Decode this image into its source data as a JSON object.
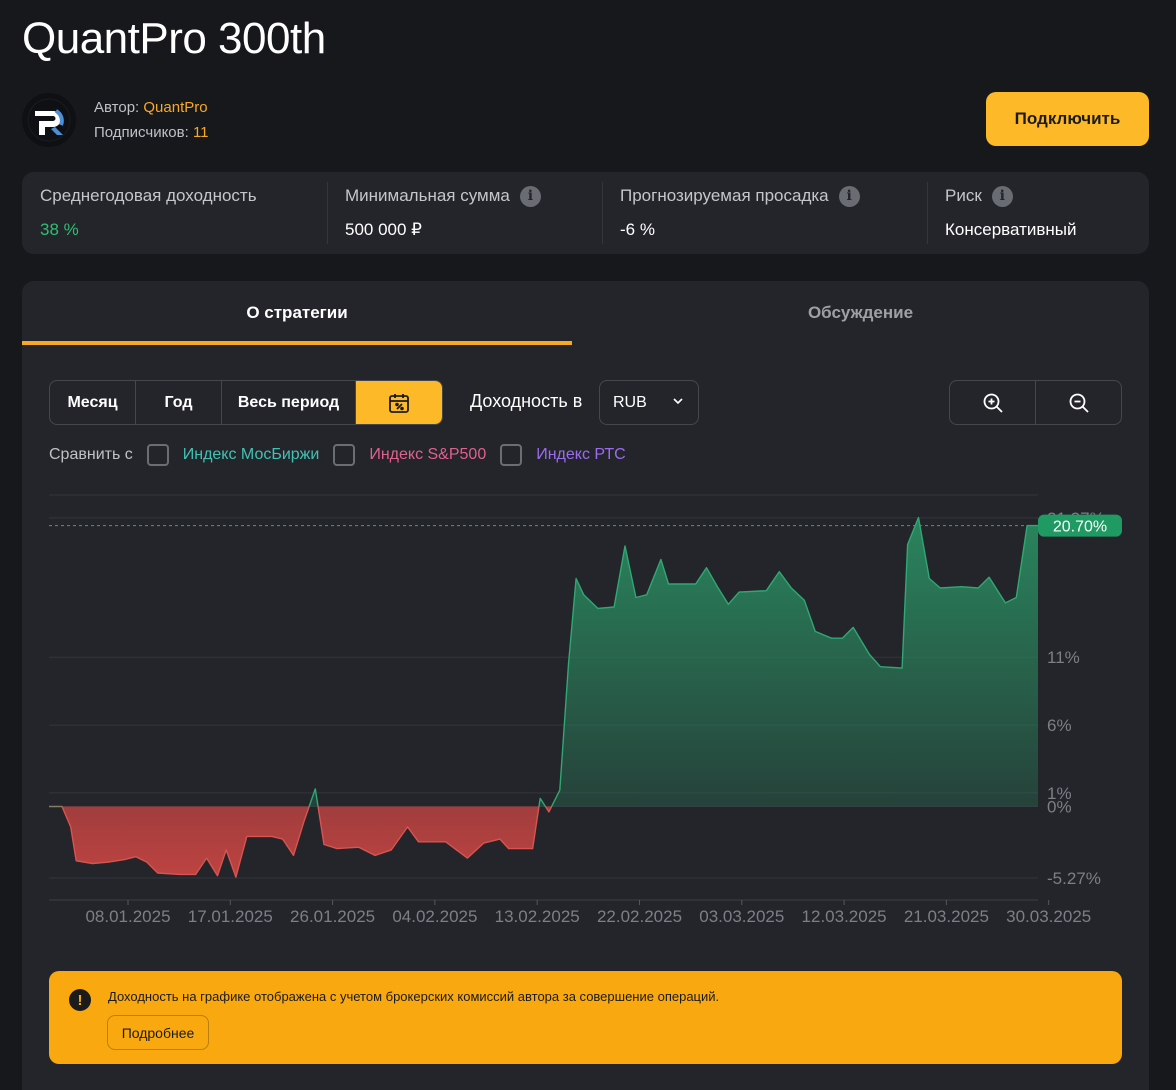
{
  "strategy": {
    "title": "QuantPro 300th",
    "author_label": "Автор: ",
    "author_name": "QuantPro",
    "subscribers_label": "Подписчиков: ",
    "subscribers_count": "11",
    "connect_label": "Подключить"
  },
  "stats": [
    {
      "label": "Среднегодовая доходность",
      "value": "38 %",
      "has_info": false
    },
    {
      "label": "Минимальная сумма",
      "value": "500 000 ₽",
      "has_info": true
    },
    {
      "label": "Прогнозируемая просадка",
      "value": "-6 %",
      "has_info": true
    },
    {
      "label": "Риск",
      "value": "Консервативный",
      "has_info": true
    }
  ],
  "tabs": [
    {
      "label": "О стратегии",
      "active": true
    },
    {
      "label": "Обсуждение",
      "active": false
    }
  ],
  "periods": {
    "month": "Месяц",
    "year": "Год",
    "all": "Весь период",
    "calendar_icon": "calendar-percent-icon"
  },
  "yield_in_label": "Доходность в",
  "currency": "RUB",
  "compare": {
    "label": "Сравнить с",
    "items": [
      {
        "label": "Индекс МосБиржи",
        "color": "#3fc2b4"
      },
      {
        "label": "Индекс S&P500",
        "color": "#e2608b"
      },
      {
        "label": "Индекс РТС",
        "color": "#9b6cf0"
      }
    ]
  },
  "chart_data": {
    "type": "area",
    "y_ticks": [
      {
        "value": 21.27,
        "label": "21.27%"
      },
      {
        "value": 11,
        "label": "11%"
      },
      {
        "value": 6,
        "label": "6%"
      },
      {
        "value": 1,
        "label": "1%"
      },
      {
        "value": 0,
        "label": "0%"
      },
      {
        "value": -5.27,
        "label": "-5.27%"
      }
    ],
    "x_labels": [
      "08.01.2025",
      "17.01.2025",
      "26.01.2025",
      "04.02.2025",
      "13.02.2025",
      "22.02.2025",
      "03.03.2025",
      "12.03.2025",
      "21.03.2025",
      "30.03.2025"
    ],
    "x_range": [
      "29.12.2024",
      "30.03.2025"
    ],
    "ylim": [
      -6.5,
      23
    ],
    "last_value": 20.7,
    "last_value_label": "20.70%",
    "positive_color": "#2fa873",
    "negative_color": "#d9534f",
    "values": [
      [
        0,
        0
      ],
      [
        1.2,
        0
      ],
      [
        2,
        -1.5
      ],
      [
        2.5,
        -4
      ],
      [
        4,
        -4.2
      ],
      [
        5.5,
        -4.1
      ],
      [
        7,
        -3.9
      ],
      [
        8,
        -3.7
      ],
      [
        9,
        -4.1
      ],
      [
        10,
        -4.9
      ],
      [
        12,
        -5.0
      ],
      [
        13.5,
        -5.0
      ],
      [
        14.5,
        -3.8
      ],
      [
        15.5,
        -5.1
      ],
      [
        16.3,
        -3.2
      ],
      [
        17.2,
        -5.2
      ],
      [
        18.2,
        -2.2
      ],
      [
        20.5,
        -2.2
      ],
      [
        21.5,
        -2.4
      ],
      [
        22.5,
        -3.6
      ],
      [
        23.5,
        -1.0
      ],
      [
        24.5,
        1.3
      ],
      [
        25.3,
        -2.8
      ],
      [
        26.5,
        -3.1
      ],
      [
        28.5,
        -3.0
      ],
      [
        30,
        -3.6
      ],
      [
        31.5,
        -3.2
      ],
      [
        33,
        -1.5
      ],
      [
        34,
        -2.6
      ],
      [
        36.5,
        -2.6
      ],
      [
        38.5,
        -3.8
      ],
      [
        40,
        -2.7
      ],
      [
        41.5,
        -2.4
      ],
      [
        42.3,
        -3.1
      ],
      [
        44.5,
        -3.1
      ],
      [
        45.2,
        0.6
      ],
      [
        46,
        -0.4
      ],
      [
        47,
        1.2
      ],
      [
        47.8,
        10.5
      ],
      [
        48.5,
        16.8
      ],
      [
        49.2,
        15.6
      ],
      [
        50.5,
        14.6
      ],
      [
        52,
        14.7
      ],
      [
        53,
        19.2
      ],
      [
        54,
        15.4
      ],
      [
        55,
        15.6
      ],
      [
        56.3,
        18.2
      ],
      [
        57,
        16.4
      ],
      [
        59.5,
        16.4
      ],
      [
        60.5,
        17.6
      ],
      [
        61.5,
        16.2
      ],
      [
        62.5,
        14.9
      ],
      [
        63.5,
        15.8
      ],
      [
        66,
        15.9
      ],
      [
        67.2,
        17.3
      ],
      [
        68.3,
        16.1
      ],
      [
        69.5,
        15.2
      ],
      [
        70.5,
        12.9
      ],
      [
        72,
        12.4
      ],
      [
        73,
        12.4
      ],
      [
        74,
        13.2
      ],
      [
        75.5,
        11.2
      ],
      [
        76.5,
        10.3
      ],
      [
        78.5,
        10.2
      ],
      [
        79,
        19.3
      ],
      [
        80,
        21.3
      ],
      [
        81,
        16.8
      ],
      [
        82,
        16.1
      ],
      [
        84,
        16.2
      ],
      [
        85.5,
        16.1
      ],
      [
        86.5,
        16.9
      ],
      [
        88,
        15.0
      ],
      [
        89,
        15.4
      ],
      [
        90,
        20.7
      ],
      [
        91,
        20.7
      ]
    ]
  },
  "notice": {
    "icon": "exclamation-icon",
    "text": "Доходность на графике отображена с учетом брокерских комиссий автора за совершение операций.",
    "button_label": "Подробнее"
  }
}
